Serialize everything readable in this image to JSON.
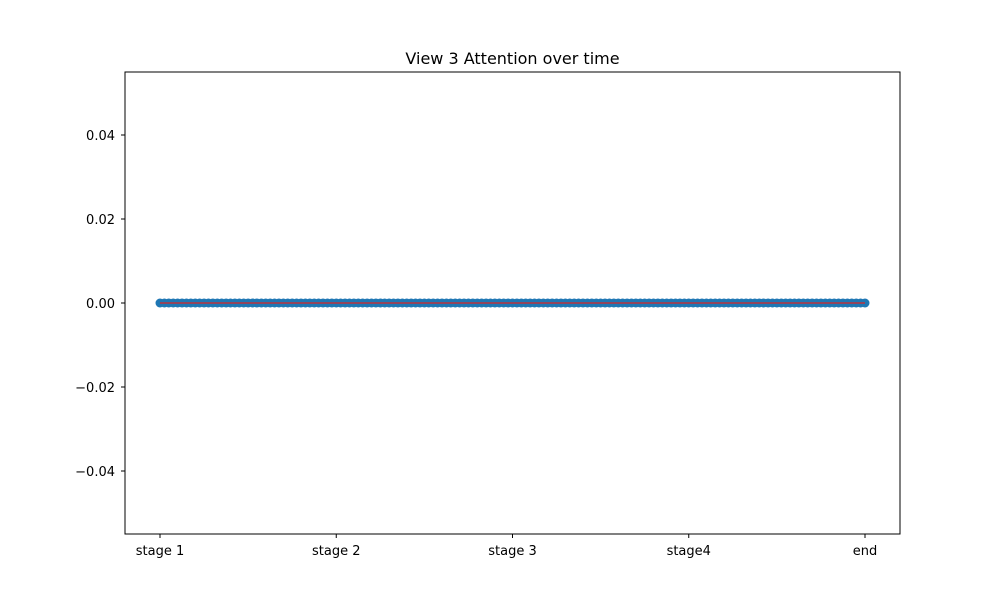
{
  "chart_data": {
    "type": "line",
    "title": "View 3 Attention over time",
    "xlabel": "",
    "ylabel": "",
    "x_tick_labels": [
      "stage 1",
      "stage 2",
      "stage 3",
      "stage4",
      "end"
    ],
    "x_range": [
      0,
      4
    ],
    "y_ticks": [
      -0.04,
      -0.02,
      0.0,
      0.02,
      0.04
    ],
    "y_tick_labels": [
      "−0.04",
      "−0.02",
      "0.00",
      "0.02",
      "0.04"
    ],
    "ylim": [
      -0.055,
      0.055
    ],
    "grid": false,
    "legend": "none",
    "series": [
      {
        "name": "",
        "marker_color": "#1f77b4",
        "line_color": "#d62728",
        "points": 161,
        "x_start": 0,
        "x_end": 4,
        "y_value": 0.0
      }
    ]
  }
}
